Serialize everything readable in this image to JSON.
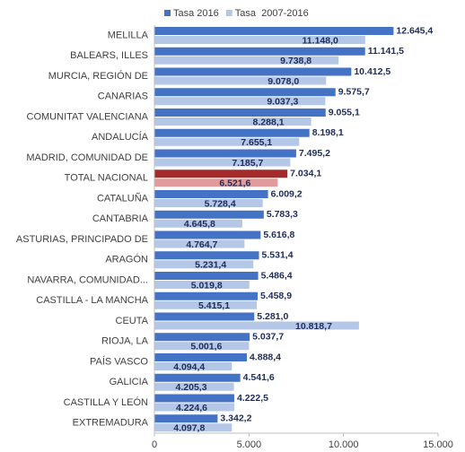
{
  "chart_data": {
    "type": "barh",
    "categories": [
      "MELILLA",
      "BALEARS, ILLES",
      "MURCIA, REGIÓN DE",
      "CANARIAS",
      "COMUNITAT VALENCIANA",
      "ANDALUCÍA",
      "MADRID, COMUNIDAD DE",
      "TOTAL NACIONAL",
      "CATALUÑA",
      "CANTABRIA",
      "ASTURIAS, PRINCIPADO DE",
      "ARAGÓN",
      "NAVARRA, COMUNIDAD...",
      "CASTILLA - LA MANCHA",
      "CEUTA",
      "RIOJA, LA",
      "PAÍS VASCO",
      "GALICIA",
      "CASTILLA Y LEÓN",
      "EXTREMADURA"
    ],
    "highlight": "TOTAL NACIONAL",
    "series": [
      {
        "name": "Tasa 2016",
        "color": "#4472c4",
        "highlight_color": "#a52a2a",
        "values": [
          12645.4,
          11141.5,
          10412.5,
          9575.7,
          9055.1,
          8198.1,
          7495.2,
          7034.1,
          6009.2,
          5783.3,
          5616.8,
          5531.4,
          5486.4,
          5458.9,
          5281.0,
          5037.7,
          4888.4,
          4541.6,
          4222.5,
          3342.2
        ],
        "value_labels": [
          "12.645,4",
          "11.141,5",
          "10.412,5",
          "9.575,7",
          "9.055,1",
          "8.198,1",
          "7.495,2",
          "7.034,1",
          "6.009,2",
          "5.783,3",
          "5.616,8",
          "5.531,4",
          "5.486,4",
          "5.458,9",
          "5.281,0",
          "5.037,7",
          "4.888,4",
          "4.541,6",
          "4.222,5",
          "3.342,2"
        ]
      },
      {
        "name": "Tasa  2007-2016",
        "color": "#b4c7e7",
        "highlight_color": "#e39a9a",
        "values": [
          11148.0,
          9738.8,
          9078.0,
          9037.3,
          8288.1,
          7655.1,
          7185.7,
          6521.6,
          5728.4,
          4645.8,
          4764.7,
          5231.4,
          5019.8,
          5415.1,
          10818.7,
          5001.6,
          4094.4,
          4205.3,
          4224.6,
          4097.8
        ],
        "value_labels": [
          "11.148,0",
          "9.738,8",
          "9.078,0",
          "9.037,3",
          "8.288,1",
          "7.655,1",
          "7.185,7",
          "6.521,6",
          "5.728,4",
          "4.645,8",
          "4.764,7",
          "5.231,4",
          "5.019,8",
          "5.415,1",
          "10.818,7",
          "5.001,6",
          "4.094,4",
          "4.205,3",
          "4.224,6",
          "4.097,8"
        ]
      }
    ],
    "xlim": [
      0,
      15000
    ],
    "xticks": [
      0,
      {
        "value": 5000,
        "label": "5.000"
      },
      {
        "value": 10000,
        "label": "10.000"
      },
      {
        "value": 15000,
        "label": "15.000"
      }
    ],
    "legend": "top"
  }
}
